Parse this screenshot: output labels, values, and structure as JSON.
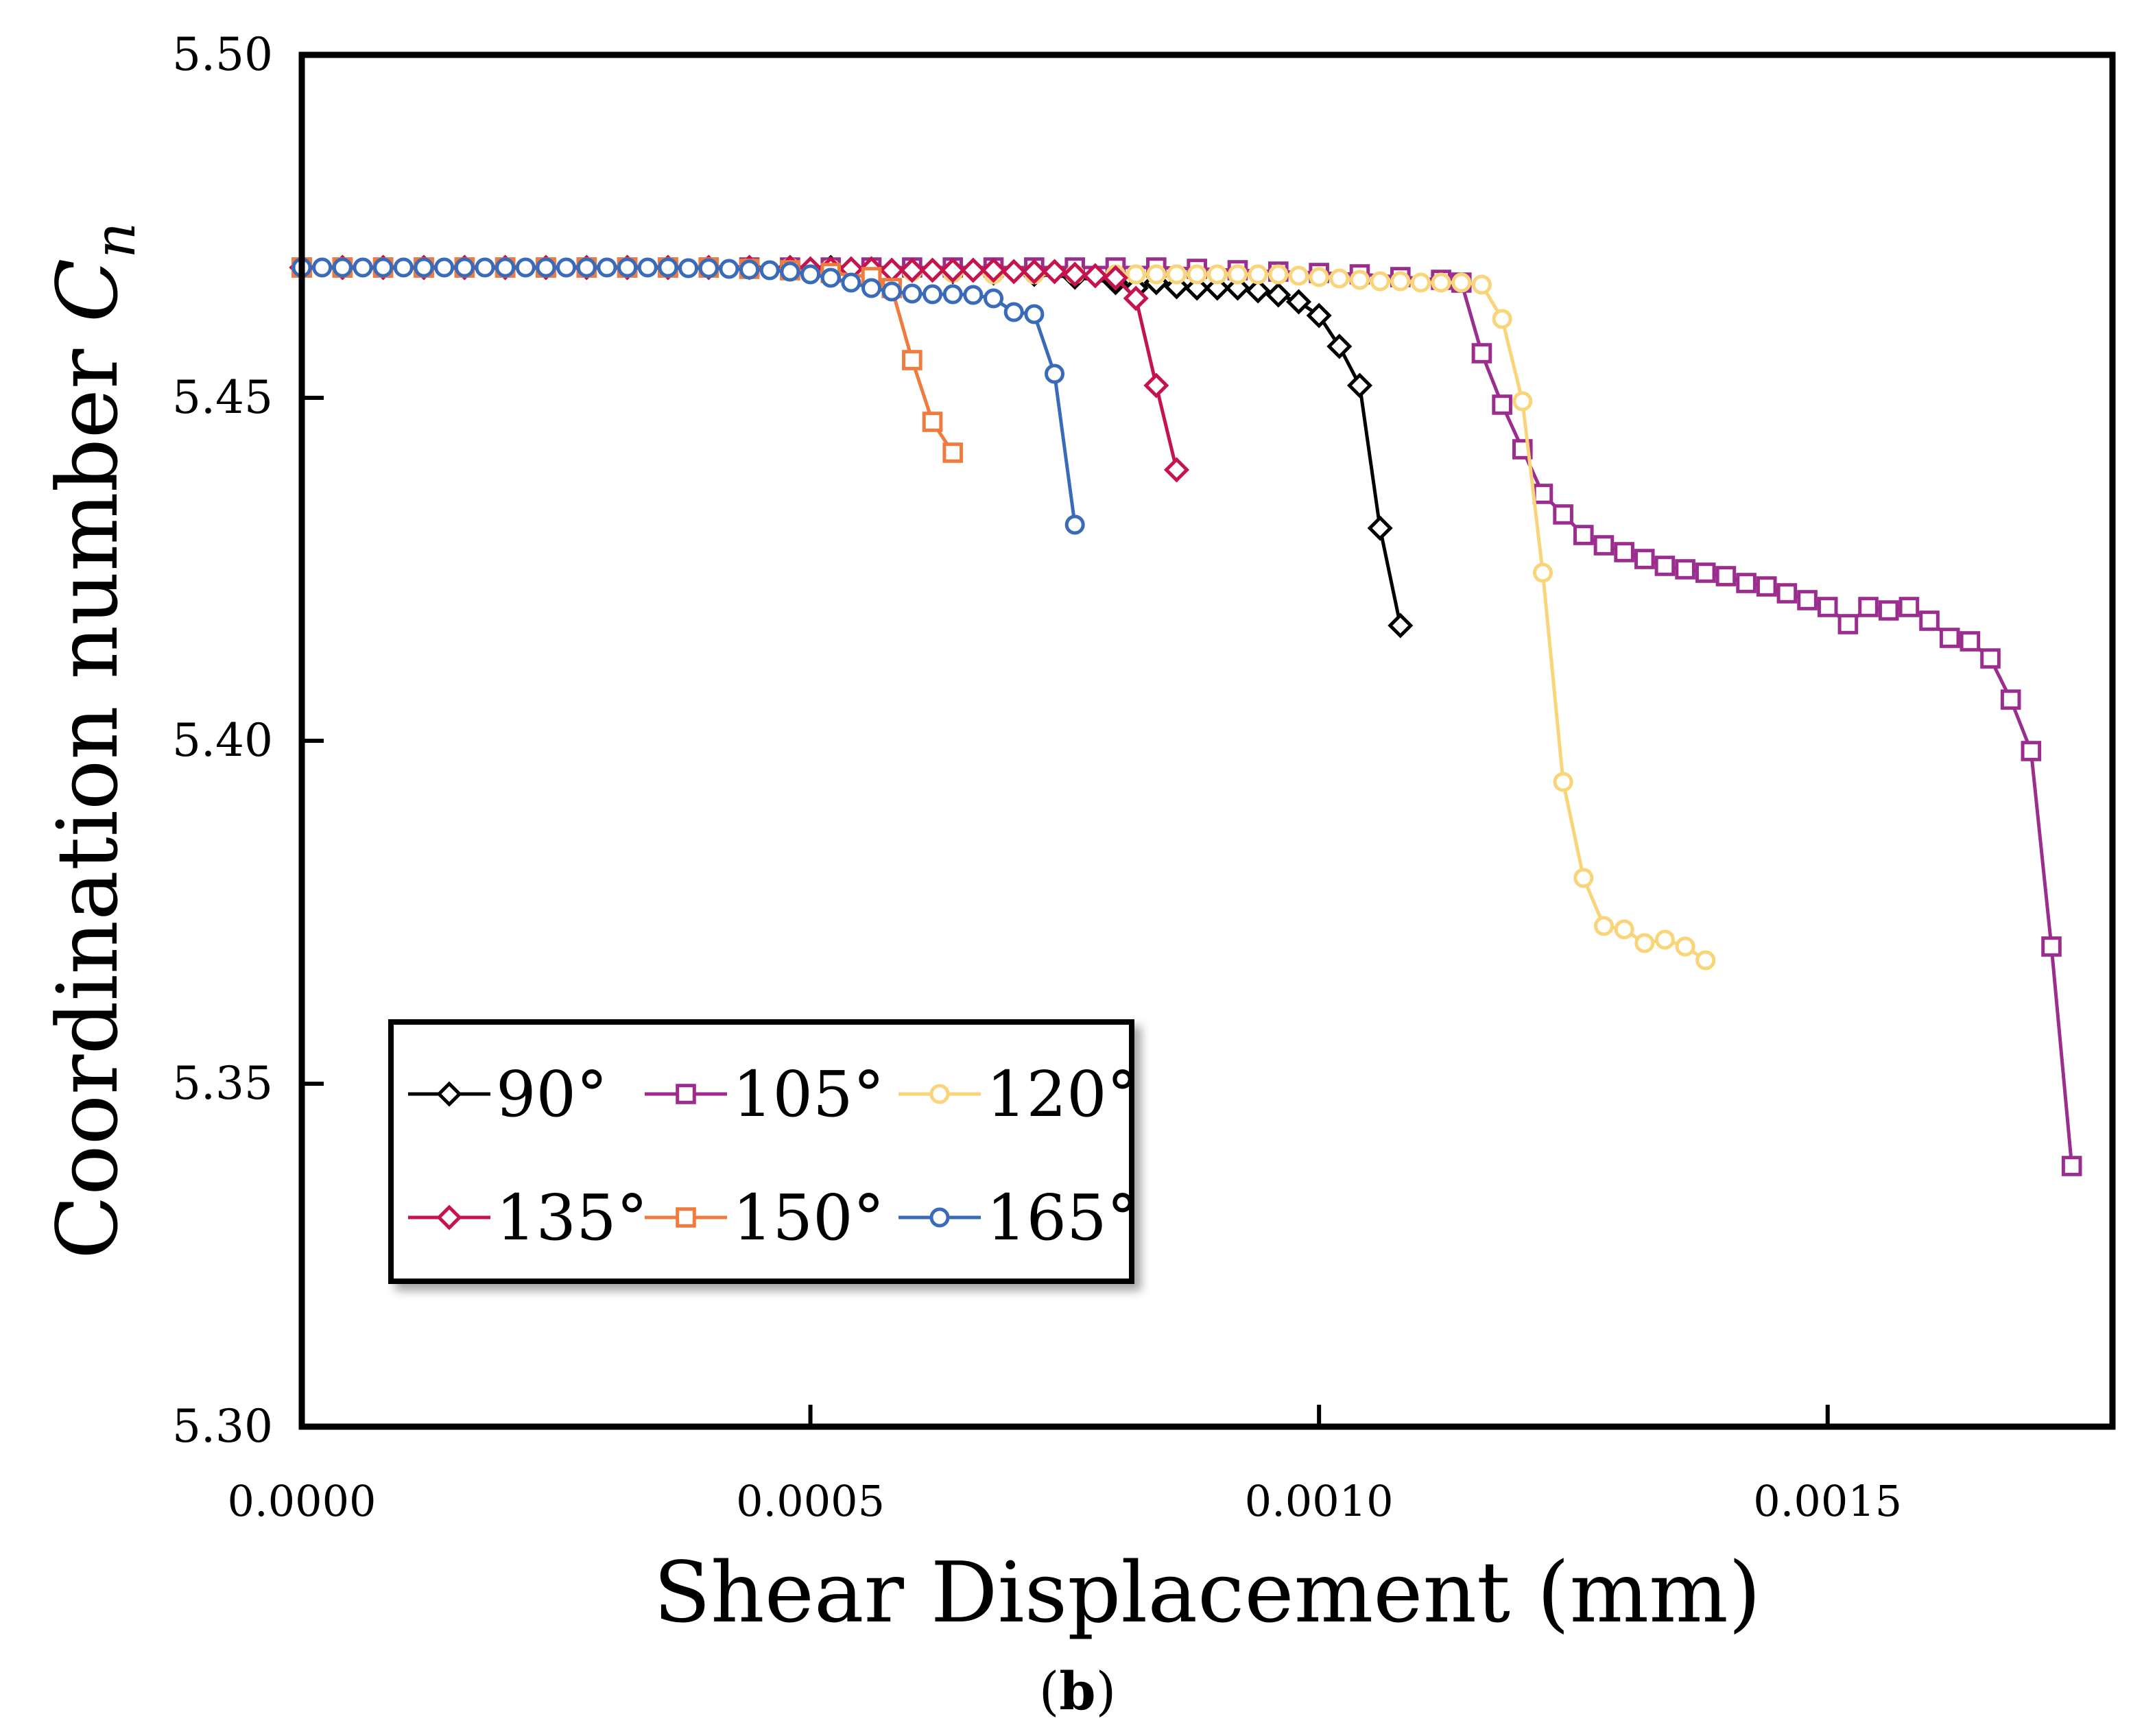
{
  "chart_data": {
    "type": "line",
    "xlabel": "Shear Displacement (mm)",
    "ylabel_main": "Coordination number ",
    "ylabel_symbol_C": "C",
    "ylabel_symbol_sub": "n",
    "panel_label_open": "(",
    "panel_label_letter": "b",
    "panel_label_close": ")",
    "xlim": [
      0,
      0.00178
    ],
    "ylim": [
      5.3,
      5.5
    ],
    "xticks": [
      0.0,
      0.0005,
      0.001,
      0.0015
    ],
    "xtick_labels": [
      "0.0000",
      "0.0005",
      "0.0010",
      "0.0015"
    ],
    "yticks": [
      5.3,
      5.35,
      5.4,
      5.45,
      5.5
    ],
    "ytick_labels": [
      "5.30",
      "5.35",
      "5.40",
      "5.45",
      "5.50"
    ],
    "legend_position": "lower-left",
    "series": [
      {
        "name": "90°",
        "color": "#000000",
        "marker": "diamond",
        "points": [
          [
            0,
            5.469
          ],
          [
            4e-05,
            5.469
          ],
          [
            8e-05,
            5.469
          ],
          [
            0.00012,
            5.469
          ],
          [
            0.00016,
            5.469
          ],
          [
            0.0002,
            5.469
          ],
          [
            0.00024,
            5.469
          ],
          [
            0.00028,
            5.469
          ],
          [
            0.00032,
            5.469
          ],
          [
            0.00036,
            5.469
          ],
          [
            0.0004,
            5.469
          ],
          [
            0.00044,
            5.469
          ],
          [
            0.00048,
            5.469
          ],
          [
            0.00052,
            5.469
          ],
          [
            0.00056,
            5.4688
          ],
          [
            0.0006,
            5.4686
          ],
          [
            0.00064,
            5.4684
          ],
          [
            0.00068,
            5.4682
          ],
          [
            0.00072,
            5.468
          ],
          [
            0.00076,
            5.4676
          ],
          [
            0.0008,
            5.4668
          ],
          [
            0.00082,
            5.466
          ],
          [
            0.00084,
            5.4668
          ],
          [
            0.00086,
            5.4662
          ],
          [
            0.00088,
            5.466
          ],
          [
            0.0009,
            5.466
          ],
          [
            0.00092,
            5.466
          ],
          [
            0.00094,
            5.4656
          ],
          [
            0.00096,
            5.465
          ],
          [
            0.00098,
            5.464
          ],
          [
            0.001,
            5.462
          ],
          [
            0.00102,
            5.4575
          ],
          [
            0.00104,
            5.4518
          ],
          [
            0.00106,
            5.431
          ],
          [
            0.00108,
            5.4168
          ]
        ]
      },
      {
        "name": "105°",
        "color": "#9b2d8f",
        "marker": "square",
        "points": [
          [
            0,
            5.469
          ],
          [
            4e-05,
            5.469
          ],
          [
            8e-05,
            5.469
          ],
          [
            0.00012,
            5.469
          ],
          [
            0.00016,
            5.469
          ],
          [
            0.0002,
            5.469
          ],
          [
            0.00024,
            5.469
          ],
          [
            0.00028,
            5.469
          ],
          [
            0.00032,
            5.469
          ],
          [
            0.00036,
            5.469
          ],
          [
            0.0004,
            5.469
          ],
          [
            0.00044,
            5.469
          ],
          [
            0.00048,
            5.469
          ],
          [
            0.00052,
            5.469
          ],
          [
            0.00056,
            5.469
          ],
          [
            0.0006,
            5.469
          ],
          [
            0.00064,
            5.469
          ],
          [
            0.00068,
            5.469
          ],
          [
            0.00072,
            5.469
          ],
          [
            0.00076,
            5.469
          ],
          [
            0.0008,
            5.469
          ],
          [
            0.00084,
            5.469
          ],
          [
            0.00088,
            5.4688
          ],
          [
            0.00092,
            5.4686
          ],
          [
            0.00096,
            5.4684
          ],
          [
            0.001,
            5.4682
          ],
          [
            0.00104,
            5.468
          ],
          [
            0.00108,
            5.4676
          ],
          [
            0.00112,
            5.4672
          ],
          [
            0.00114,
            5.4668
          ],
          [
            0.00116,
            5.4565
          ],
          [
            0.00118,
            5.449
          ],
          [
            0.0012,
            5.4425
          ],
          [
            0.00122,
            5.436
          ],
          [
            0.00124,
            5.433
          ],
          [
            0.00126,
            5.43
          ],
          [
            0.00128,
            5.4285
          ],
          [
            0.0013,
            5.4275
          ],
          [
            0.00132,
            5.4265
          ],
          [
            0.00134,
            5.4255
          ],
          [
            0.00136,
            5.425
          ],
          [
            0.00138,
            5.4245
          ],
          [
            0.0014,
            5.424
          ],
          [
            0.00142,
            5.423
          ],
          [
            0.00144,
            5.4225
          ],
          [
            0.00146,
            5.4215
          ],
          [
            0.00148,
            5.4205
          ],
          [
            0.0015,
            5.4195
          ],
          [
            0.00152,
            5.417
          ],
          [
            0.00154,
            5.4195
          ],
          [
            0.00156,
            5.419
          ],
          [
            0.00158,
            5.4195
          ],
          [
            0.0016,
            5.4175
          ],
          [
            0.00162,
            5.415
          ],
          [
            0.00164,
            5.4145
          ],
          [
            0.00166,
            5.412
          ],
          [
            0.00168,
            5.406
          ],
          [
            0.0017,
            5.3985
          ],
          [
            0.00172,
            5.37
          ],
          [
            0.00174,
            5.338
          ]
        ]
      },
      {
        "name": "120°",
        "color": "#f9d479",
        "marker": "circle",
        "points": [
          [
            0,
            5.469
          ],
          [
            4e-05,
            5.469
          ],
          [
            8e-05,
            5.469
          ],
          [
            0.00012,
            5.469
          ],
          [
            0.00016,
            5.469
          ],
          [
            0.0002,
            5.469
          ],
          [
            0.00024,
            5.469
          ],
          [
            0.00028,
            5.469
          ],
          [
            0.00032,
            5.469
          ],
          [
            0.00036,
            5.469
          ],
          [
            0.0004,
            5.469
          ],
          [
            0.00044,
            5.469
          ],
          [
            0.00048,
            5.469
          ],
          [
            0.00052,
            5.4688
          ],
          [
            0.00056,
            5.4686
          ],
          [
            0.0006,
            5.4684
          ],
          [
            0.00064,
            5.4682
          ],
          [
            0.00068,
            5.468
          ],
          [
            0.00072,
            5.468
          ],
          [
            0.00076,
            5.468
          ],
          [
            0.0008,
            5.468
          ],
          [
            0.00082,
            5.468
          ],
          [
            0.00084,
            5.468
          ],
          [
            0.00086,
            5.468
          ],
          [
            0.00088,
            5.468
          ],
          [
            0.0009,
            5.468
          ],
          [
            0.00092,
            5.468
          ],
          [
            0.00094,
            5.468
          ],
          [
            0.00096,
            5.468
          ],
          [
            0.00098,
            5.4678
          ],
          [
            0.001,
            5.4676
          ],
          [
            0.00102,
            5.4674
          ],
          [
            0.00104,
            5.4672
          ],
          [
            0.00106,
            5.467
          ],
          [
            0.00108,
            5.467
          ],
          [
            0.0011,
            5.4668
          ],
          [
            0.00112,
            5.4668
          ],
          [
            0.00114,
            5.4668
          ],
          [
            0.00116,
            5.4665
          ],
          [
            0.00118,
            5.4615
          ],
          [
            0.0012,
            5.4495
          ],
          [
            0.00122,
            5.4245
          ],
          [
            0.00124,
            5.394
          ],
          [
            0.00126,
            5.38
          ],
          [
            0.00128,
            5.373
          ],
          [
            0.0013,
            5.3725
          ],
          [
            0.00132,
            5.3705
          ],
          [
            0.00134,
            5.371
          ],
          [
            0.00136,
            5.37
          ],
          [
            0.00138,
            5.368
          ]
        ]
      },
      {
        "name": "135°",
        "color": "#c4134d",
        "marker": "diamond",
        "points": [
          [
            0,
            5.469
          ],
          [
            4e-05,
            5.469
          ],
          [
            8e-05,
            5.469
          ],
          [
            0.00012,
            5.469
          ],
          [
            0.00016,
            5.469
          ],
          [
            0.0002,
            5.469
          ],
          [
            0.00024,
            5.469
          ],
          [
            0.00028,
            5.469
          ],
          [
            0.00032,
            5.469
          ],
          [
            0.00036,
            5.469
          ],
          [
            0.0004,
            5.469
          ],
          [
            0.00044,
            5.469
          ],
          [
            0.00048,
            5.469
          ],
          [
            0.0005,
            5.4688
          ],
          [
            0.00052,
            5.4688
          ],
          [
            0.00054,
            5.4688
          ],
          [
            0.00056,
            5.4688
          ],
          [
            0.00058,
            5.4686
          ],
          [
            0.0006,
            5.4686
          ],
          [
            0.00062,
            5.4686
          ],
          [
            0.00064,
            5.4686
          ],
          [
            0.00066,
            5.4686
          ],
          [
            0.00068,
            5.4686
          ],
          [
            0.0007,
            5.4684
          ],
          [
            0.00072,
            5.4684
          ],
          [
            0.00074,
            5.4684
          ],
          [
            0.00076,
            5.468
          ],
          [
            0.00078,
            5.4678
          ],
          [
            0.0008,
            5.4675
          ],
          [
            0.00082,
            5.4645
          ],
          [
            0.00084,
            5.4518
          ],
          [
            0.00086,
            5.4395
          ]
        ]
      },
      {
        "name": "150°",
        "color": "#f07b3f",
        "marker": "square",
        "points": [
          [
            0,
            5.469
          ],
          [
            4e-05,
            5.469
          ],
          [
            8e-05,
            5.469
          ],
          [
            0.00012,
            5.469
          ],
          [
            0.00016,
            5.469
          ],
          [
            0.0002,
            5.469
          ],
          [
            0.00024,
            5.469
          ],
          [
            0.00028,
            5.469
          ],
          [
            0.00032,
            5.469
          ],
          [
            0.00036,
            5.469
          ],
          [
            0.0004,
            5.469
          ],
          [
            0.00044,
            5.4688
          ],
          [
            0.00048,
            5.4686
          ],
          [
            0.00052,
            5.4682
          ],
          [
            0.00056,
            5.4676
          ],
          [
            0.00058,
            5.466
          ],
          [
            0.0006,
            5.4555
          ],
          [
            0.00062,
            5.4465
          ],
          [
            0.00064,
            5.442
          ]
        ]
      },
      {
        "name": "165°",
        "color": "#3a6bb8",
        "marker": "circle",
        "points": [
          [
            0,
            5.469
          ],
          [
            2e-05,
            5.469
          ],
          [
            4e-05,
            5.469
          ],
          [
            6e-05,
            5.469
          ],
          [
            8e-05,
            5.469
          ],
          [
            0.0001,
            5.469
          ],
          [
            0.00012,
            5.469
          ],
          [
            0.00014,
            5.469
          ],
          [
            0.00016,
            5.469
          ],
          [
            0.00018,
            5.469
          ],
          [
            0.0002,
            5.469
          ],
          [
            0.00022,
            5.469
          ],
          [
            0.00024,
            5.469
          ],
          [
            0.00026,
            5.469
          ],
          [
            0.00028,
            5.469
          ],
          [
            0.0003,
            5.469
          ],
          [
            0.00032,
            5.469
          ],
          [
            0.00034,
            5.469
          ],
          [
            0.00036,
            5.469
          ],
          [
            0.00038,
            5.4689
          ],
          [
            0.0004,
            5.4689
          ],
          [
            0.00042,
            5.4688
          ],
          [
            0.00044,
            5.4687
          ],
          [
            0.00046,
            5.4686
          ],
          [
            0.00048,
            5.4684
          ],
          [
            0.0005,
            5.468
          ],
          [
            0.00052,
            5.4675
          ],
          [
            0.00054,
            5.4668
          ],
          [
            0.00056,
            5.466
          ],
          [
            0.00058,
            5.4655
          ],
          [
            0.0006,
            5.4652
          ],
          [
            0.00062,
            5.4651
          ],
          [
            0.00064,
            5.4651
          ],
          [
            0.00066,
            5.465
          ],
          [
            0.00068,
            5.4645
          ],
          [
            0.0007,
            5.4625
          ],
          [
            0.00072,
            5.4622
          ],
          [
            0.00074,
            5.4535
          ],
          [
            0.00076,
            5.4315
          ]
        ]
      }
    ]
  }
}
